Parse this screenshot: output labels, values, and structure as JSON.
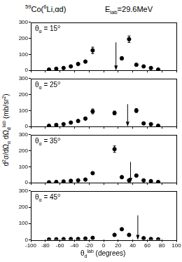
{
  "figure": {
    "title": [
      {
        "sup": "59"
      },
      {
        "text": "Co("
      },
      {
        "sup": "6"
      },
      {
        "text": "Li,αd)"
      }
    ],
    "energy": [
      {
        "text": "E"
      },
      {
        "sub": "lab"
      },
      {
        "text": "=29.6MeV"
      }
    ],
    "y_label": [
      {
        "text": "d"
      },
      {
        "sup": "2"
      },
      {
        "text": "σ/dΩ"
      },
      {
        "sub": "α"
      },
      {
        "text": " dΩ"
      },
      {
        "sub": "d"
      },
      {
        "sup": "lab"
      },
      {
        "text": " (mb/sr"
      },
      {
        "sup": "2"
      },
      {
        "text": ")"
      }
    ],
    "x_label": [
      {
        "text": "θ"
      },
      {
        "sub": "d"
      },
      {
        "sup": "lab"
      },
      {
        "text": " (degrees)"
      }
    ]
  },
  "chart_data": [
    {
      "type": "scatter",
      "annotation": [
        {
          "text": "θ"
        },
        {
          "sub": "α"
        },
        {
          "text": " = 15"
        },
        {
          "sup": "o"
        }
      ],
      "x": [
        -75,
        -65,
        -55,
        -45,
        -35,
        -25,
        -15,
        25,
        35,
        45,
        55,
        65,
        75
      ],
      "values": [
        5,
        10,
        15,
        25,
        40,
        55,
        125,
        75,
        195,
        35,
        25,
        15,
        5
      ],
      "errors": [
        null,
        null,
        null,
        null,
        null,
        null,
        20,
        10,
        20,
        null,
        null,
        null,
        null
      ],
      "arrow": {
        "x": 17,
        "y_from": 175,
        "y_to": 0
      },
      "xlim": [
        -100,
        100
      ],
      "xticks": [
        -100,
        -80,
        -60,
        -40,
        -20,
        0,
        20,
        40,
        60,
        80,
        100
      ],
      "ylim": [
        0,
        300
      ],
      "yticks": [
        0,
        100,
        200,
        300
      ],
      "color": "#000000",
      "marker": "circle",
      "line_style": "none",
      "grid": false,
      "tick_labels": "y"
    },
    {
      "type": "scatter",
      "annotation": [
        {
          "text": "θ"
        },
        {
          "sub": "α"
        },
        {
          "text": " = 25"
        },
        {
          "sup": "o"
        }
      ],
      "x": [
        -75,
        -65,
        -55,
        -45,
        -35,
        -25,
        -15,
        15,
        45,
        55,
        65,
        75
      ],
      "values": [
        5,
        10,
        15,
        25,
        35,
        50,
        95,
        85,
        100,
        20,
        15,
        5
      ],
      "errors": [
        null,
        null,
        null,
        null,
        null,
        null,
        15,
        12,
        12,
        null,
        null,
        null
      ],
      "arrow": {
        "x": 33,
        "y_from": 140,
        "y_to": 0
      },
      "xlim": [
        -100,
        100
      ],
      "xticks": [
        -100,
        -80,
        -60,
        -40,
        -20,
        0,
        20,
        40,
        60,
        80,
        100
      ],
      "ylim": [
        0,
        300
      ],
      "yticks": [
        0,
        100,
        200,
        300
      ],
      "color": "#000000",
      "marker": "circle",
      "line_style": "none",
      "grid": false,
      "tick_labels": "y"
    },
    {
      "type": "scatter",
      "annotation": [
        {
          "text": "θ"
        },
        {
          "sub": "α"
        },
        {
          "text": " = 35"
        },
        {
          "sup": "o"
        }
      ],
      "x": [
        -75,
        -65,
        -55,
        -45,
        -35,
        -25,
        -15,
        15,
        25,
        35,
        45,
        55,
        65,
        75
      ],
      "values": [
        3,
        5,
        8,
        12,
        15,
        20,
        60,
        210,
        35,
        15,
        45,
        15,
        10,
        5
      ],
      "errors": [
        null,
        null,
        null,
        null,
        null,
        null,
        null,
        20,
        null,
        null,
        null,
        null,
        null,
        null
      ],
      "arrow": {
        "x": 37,
        "y_from": 130,
        "y_to": 0
      },
      "xlim": [
        -100,
        100
      ],
      "xticks": [
        -100,
        -80,
        -60,
        -40,
        -20,
        0,
        20,
        40,
        60,
        80,
        100
      ],
      "ylim": [
        0,
        300
      ],
      "yticks": [
        0,
        100,
        200,
        300
      ],
      "color": "#000000",
      "marker": "circle",
      "line_style": "none",
      "grid": false,
      "tick_labels": "y"
    },
    {
      "type": "scatter",
      "annotation": [
        {
          "text": "θ"
        },
        {
          "sub": "α"
        },
        {
          "text": " = 45"
        },
        {
          "sup": "o"
        }
      ],
      "x": [
        -75,
        -65,
        -55,
        -45,
        -35,
        -25,
        -15,
        15,
        25,
        35,
        55,
        65,
        75
      ],
      "values": [
        2,
        3,
        4,
        5,
        5,
        8,
        12,
        30,
        65,
        30,
        10,
        5,
        3
      ],
      "errors": [
        null,
        null,
        null,
        null,
        null,
        null,
        null,
        null,
        null,
        null,
        null,
        null,
        null
      ],
      "arrow": {
        "x": 47,
        "y_from": 150,
        "y_to": 0
      },
      "xlim": [
        -100,
        100
      ],
      "xticks": [
        -100,
        -80,
        -60,
        -40,
        -20,
        0,
        20,
        40,
        60,
        80,
        100
      ],
      "ylim": [
        0,
        300
      ],
      "yticks": [
        0,
        100,
        200,
        300
      ],
      "color": "#000000",
      "marker": "circle",
      "line_style": "none",
      "grid": false,
      "tick_labels": true
    }
  ]
}
